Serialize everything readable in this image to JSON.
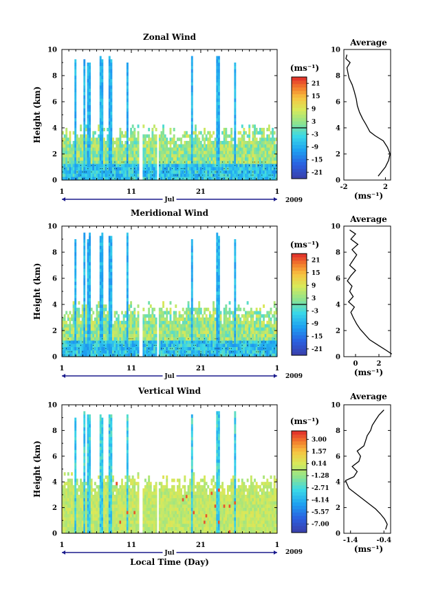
{
  "chart_data": [
    {
      "type": "heatmap",
      "title": "Zonal Wind",
      "ylabel": "Height (km)",
      "ylim": [
        0,
        10
      ],
      "yticks": [
        "0",
        "2",
        "4",
        "6",
        "8",
        "10"
      ],
      "xlim": [
        1,
        32
      ],
      "xticks": [
        "1",
        "11",
        "21",
        "1"
      ],
      "month_label": "Jul",
      "year_label": "2009",
      "colorbar": {
        "unit_label": "(ms⁻¹)",
        "ticks": [
          "21",
          "15",
          "9",
          "3",
          "-3",
          "-9",
          "-15",
          "-21"
        ],
        "range": [
          -24,
          24
        ],
        "zero_line": 0
      },
      "profile": {
        "title": "Average",
        "xlim": [
          -2,
          2.5
        ],
        "xticks": [
          "-2",
          "2"
        ],
        "xtick_values": [
          -2,
          2
        ],
        "xlabel": "(ms⁻¹)",
        "yticks": [
          "0",
          "2",
          "4",
          "6",
          "8",
          "10"
        ],
        "heights": [
          0.3,
          0.6,
          1.0,
          1.5,
          2.0,
          2.5,
          3.0,
          3.4,
          3.7,
          4.0,
          4.3,
          4.7,
          5.2,
          5.7,
          6.2,
          6.8,
          7.3,
          7.8,
          8.2,
          8.6,
          9.0,
          9.3,
          9.6
        ],
        "values": [
          1.3,
          1.6,
          2.0,
          2.3,
          2.45,
          2.2,
          1.8,
          1.0,
          0.5,
          0.3,
          0.1,
          -0.2,
          -0.5,
          -0.7,
          -0.8,
          -1.0,
          -1.2,
          -1.5,
          -1.6,
          -1.7,
          -1.4,
          -1.8,
          -1.7
        ]
      }
    },
    {
      "type": "heatmap",
      "title": "Meridional Wind",
      "ylabel": "Height (km)",
      "ylim": [
        0,
        10
      ],
      "yticks": [
        "0",
        "2",
        "4",
        "6",
        "8",
        "10"
      ],
      "xlim": [
        1,
        32
      ],
      "xticks": [
        "1",
        "11",
        "21",
        "1"
      ],
      "month_label": "Jul",
      "year_label": "2009",
      "colorbar": {
        "unit_label": "(ms⁻¹)",
        "ticks": [
          "21",
          "15",
          "9",
          "3",
          "-3",
          "-9",
          "-15",
          "-21"
        ],
        "range": [
          -24,
          24
        ],
        "zero_line": 0
      },
      "profile": {
        "title": "Average",
        "xlim": [
          -1,
          3
        ],
        "xticks": [
          "0",
          "2"
        ],
        "xtick_values": [
          0,
          2
        ],
        "xlabel": "(ms⁻¹)",
        "yticks": [
          "0",
          "2",
          "4",
          "6",
          "8",
          "10"
        ],
        "heights": [
          0.2,
          0.5,
          0.9,
          1.3,
          1.7,
          2.1,
          2.5,
          3.0,
          3.4,
          3.8,
          4.2,
          4.6,
          5.0,
          5.4,
          5.8,
          6.2,
          6.6,
          7.0,
          7.4,
          7.8,
          8.2,
          8.6,
          9.0,
          9.4,
          9.7
        ],
        "values": [
          3.1,
          2.6,
          1.9,
          1.2,
          0.8,
          0.4,
          0.1,
          -0.2,
          -0.4,
          -0.1,
          -0.6,
          -0.2,
          -0.5,
          -0.3,
          -0.7,
          -0.4,
          0.0,
          -0.5,
          -0.2,
          0.1,
          -0.3,
          0.2,
          -0.4,
          0.0,
          -0.5
        ]
      }
    },
    {
      "type": "heatmap",
      "title": "Vertical Wind",
      "ylabel": "Height (km)",
      "xlabel": "Local Time (Day)",
      "ylim": [
        0,
        10
      ],
      "yticks": [
        "0",
        "2",
        "4",
        "6",
        "8",
        "10"
      ],
      "xlim": [
        1,
        32
      ],
      "xticks": [
        "1",
        "11",
        "21",
        "1"
      ],
      "month_label": "Jul",
      "year_label": "2009",
      "colorbar": {
        "unit_label": "(ms⁻¹)",
        "ticks": [
          "3.00",
          "1.57",
          "0.14",
          "-1.28",
          "-2.71",
          "-4.14",
          "-5.57",
          "-7.00"
        ],
        "range": [
          -8,
          4
        ],
        "zero_line": -0.6
      },
      "profile": {
        "title": "Average",
        "xlim": [
          -1.6,
          -0.2
        ],
        "xticks": [
          "-1.4",
          "-0.4"
        ],
        "xtick_values": [
          -1.4,
          -0.4
        ],
        "xlabel": "(ms⁻¹)",
        "yticks": [
          "0",
          "2",
          "4",
          "6",
          "8",
          "10"
        ],
        "heights": [
          0.3,
          0.7,
          1.1,
          1.5,
          1.9,
          2.3,
          2.7,
          3.1,
          3.5,
          3.8,
          4.1,
          4.4,
          4.8,
          5.2,
          5.6,
          6.0,
          6.4,
          6.8,
          7.2,
          7.6,
          8.0,
          8.4,
          8.8,
          9.2,
          9.6
        ],
        "values": [
          -0.35,
          -0.3,
          -0.38,
          -0.5,
          -0.65,
          -0.85,
          -1.05,
          -1.25,
          -1.45,
          -1.5,
          -1.55,
          -1.3,
          -1.2,
          -1.35,
          -1.15,
          -1.1,
          -1.2,
          -1.0,
          -0.95,
          -0.9,
          -0.8,
          -0.75,
          -0.65,
          -0.55,
          -0.4
        ]
      }
    }
  ]
}
